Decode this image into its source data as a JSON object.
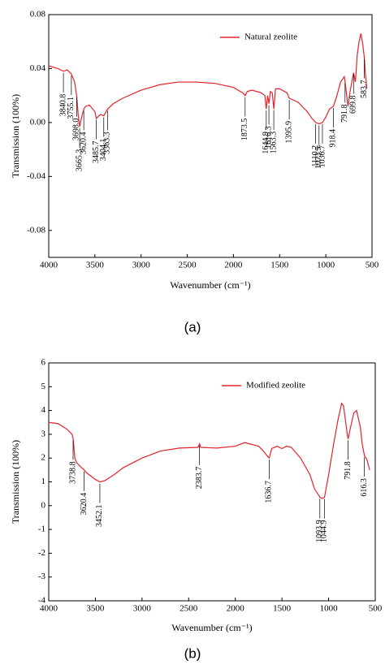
{
  "chart_data": [
    {
      "type": "line",
      "caption": "(a)",
      "xlabel": "Wavenumber (cm⁻¹)",
      "ylabel": "Transmission (100%)",
      "xlim": [
        4000,
        500
      ],
      "xticks": [
        4000,
        3500,
        3000,
        2500,
        2000,
        1500,
        1000,
        500
      ],
      "ylim": [
        -0.1,
        0.08
      ],
      "yticks": [
        0.08,
        0.04,
        {
          "value": 0,
          "label": "0.00"
        },
        -0.04,
        -0.08
      ],
      "legend": "upper right",
      "x": [
        4000,
        3900,
        3840,
        3800,
        3755,
        3720,
        3698,
        3680,
        3665,
        3640,
        3620,
        3600,
        3560,
        3500,
        3485,
        3440,
        3404,
        3363,
        3300,
        3200,
        3000,
        2800,
        2600,
        2400,
        2200,
        2000,
        1900,
        1873,
        1850,
        1800,
        1700,
        1660,
        1645,
        1630,
        1616,
        1600,
        1580,
        1563,
        1545,
        1500,
        1420,
        1396,
        1300,
        1200,
        1150,
        1110,
        1073,
        1036,
        1000,
        960,
        918,
        880,
        840,
        800,
        791,
        760,
        740,
        700,
        680,
        660,
        640,
        620,
        600,
        583,
        570,
        555
      ],
      "series": [
        {
          "name": "Natural zeolite",
          "color": "#e3232c",
          "values": [
            0.042,
            0.04,
            0.038,
            0.039,
            0.036,
            0.03,
            0.02,
            0.005,
            -0.003,
            0.005,
            0.01,
            0.012,
            0.013,
            0.008,
            0.003,
            0.006,
            0.005,
            0.01,
            0.014,
            0.018,
            0.024,
            0.028,
            0.03,
            0.03,
            0.029,
            0.026,
            0.022,
            0.02,
            0.023,
            0.024,
            0.022,
            0.02,
            0.01,
            0.02,
            0.014,
            0.023,
            0.022,
            0.01,
            0.025,
            0.025,
            0.022,
            0.018,
            0.015,
            0.008,
            0.003,
            0.0,
            -0.001,
            0.0,
            0.004,
            0.01,
            0.012,
            0.02,
            0.03,
            0.034,
            0.03,
            0.012,
            0.022,
            0.037,
            0.03,
            0.05,
            0.06,
            0.066,
            0.058,
            0.048,
            0.035,
            0.025
          ]
        }
      ],
      "annotations": [
        {
          "label": "3840.8",
          "x": 3840.8
        },
        {
          "label": "3755.1",
          "x": 3755.1
        },
        {
          "label": "3698.0",
          "x": 3698.0
        },
        {
          "label": "3665.3",
          "x": 3665.3
        },
        {
          "label": "3620.4",
          "x": 3620.4
        },
        {
          "label": "3485.7",
          "x": 3485.7
        },
        {
          "label": "3404.1",
          "x": 3404.1
        },
        {
          "label": "3363.3",
          "x": 3363.3
        },
        {
          "label": "1873.5",
          "x": 1873.5
        },
        {
          "label": "1644.9",
          "x": 1644.9
        },
        {
          "label": "1616.3",
          "x": 1616.3
        },
        {
          "label": "1563.3",
          "x": 1563.3
        },
        {
          "label": "1395.9",
          "x": 1395.9
        },
        {
          "label": "1110.2",
          "x": 1110.2
        },
        {
          "label": "1073.5",
          "x": 1073.5
        },
        {
          "label": "1036.7",
          "x": 1036.7
        },
        {
          "label": "918.4",
          "x": 918.4
        },
        {
          "label": "791.8",
          "x": 791.8
        },
        {
          "label": "699.8",
          "x": 699.8
        },
        {
          "label": "583.7",
          "x": 583.7
        }
      ]
    },
    {
      "type": "line",
      "caption": "(b)",
      "xlabel": "Wavenumber (cm⁻¹)",
      "ylabel": "Transmission (100%)",
      "xlim": [
        4000,
        500
      ],
      "xticks": [
        4000,
        3500,
        3000,
        2500,
        2000,
        1500,
        1000,
        500
      ],
      "ylim": [
        -4,
        6
      ],
      "yticks": [
        6,
        5,
        4,
        3,
        2,
        1,
        0,
        -1,
        -2,
        -3,
        -4
      ],
      "legend": "upper right",
      "x": [
        4000,
        3900,
        3800,
        3750,
        3738,
        3720,
        3700,
        3650,
        3620,
        3600,
        3500,
        3452,
        3400,
        3300,
        3200,
        3000,
        2800,
        2600,
        2400,
        2383,
        2370,
        2200,
        2000,
        1900,
        1850,
        1800,
        1750,
        1700,
        1660,
        1636,
        1610,
        1550,
        1500,
        1450,
        1400,
        1300,
        1200,
        1150,
        1100,
        1093,
        1070,
        1044,
        1000,
        950,
        900,
        860,
        840,
        800,
        791,
        770,
        730,
        700,
        660,
        640,
        616,
        590,
        560
      ],
      "series": [
        {
          "name": "Modified zeolite",
          "color": "#e3232c",
          "values": [
            3.5,
            3.45,
            3.2,
            3.0,
            2.8,
            2.0,
            1.8,
            1.6,
            1.5,
            1.4,
            1.1,
            1.0,
            1.05,
            1.3,
            1.6,
            2.0,
            2.3,
            2.42,
            2.45,
            2.6,
            2.45,
            2.42,
            2.5,
            2.65,
            2.6,
            2.55,
            2.5,
            2.3,
            2.1,
            2.0,
            2.4,
            2.5,
            2.4,
            2.5,
            2.45,
            2.0,
            1.3,
            0.7,
            0.4,
            0.35,
            0.3,
            0.35,
            1.3,
            2.5,
            3.6,
            4.3,
            4.2,
            3.0,
            2.8,
            3.2,
            3.9,
            4.0,
            3.3,
            2.6,
            2.1,
            1.95,
            1.5
          ]
        }
      ],
      "annotations": [
        {
          "label": "3738.8",
          "x": 3738.8
        },
        {
          "label": "3620.4",
          "x": 3620.4
        },
        {
          "label": "3452.1",
          "x": 3452.1
        },
        {
          "label": "2383.7",
          "x": 2383.7
        },
        {
          "label": "1636.7",
          "x": 1636.7
        },
        {
          "label": "1093.9",
          "x": 1093.9
        },
        {
          "label": "1044.9",
          "x": 1044.9
        },
        {
          "label": "791.8",
          "x": 791.8
        },
        {
          "label": "616.3",
          "x": 616.3
        }
      ]
    }
  ]
}
